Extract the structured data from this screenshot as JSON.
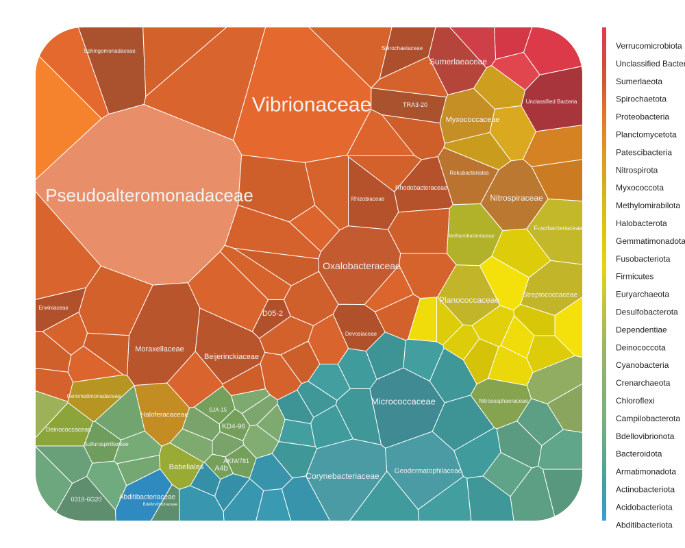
{
  "chart_data": {
    "type": "voronoi-treemap",
    "legend": {
      "placement": "right",
      "entries": [
        {
          "name": "Verrucomicrobiota",
          "color": "#e23b4a"
        },
        {
          "name": "Unclassified Bacteria",
          "color": "#d8424a"
        },
        {
          "name": "Sumerlaeota",
          "color": "#d04d3d"
        },
        {
          "name": "Spirochaetota",
          "color": "#cc5b35"
        },
        {
          "name": "Proteobacteria",
          "color": "#e0672e"
        },
        {
          "name": "Planctomycetota",
          "color": "#e3792a"
        },
        {
          "name": "Patescibacteria",
          "color": "#e18a26"
        },
        {
          "name": "Nitrospirota",
          "color": "#de9a22"
        },
        {
          "name": "Myxococcota",
          "color": "#d7a61f"
        },
        {
          "name": "Methylomirabilota",
          "color": "#d6b21d"
        },
        {
          "name": "Halobacterota",
          "color": "#d9bc17"
        },
        {
          "name": "Gemmatimonadota",
          "color": "#ddc411"
        },
        {
          "name": "Fusobacteriota",
          "color": "#e0cd0c"
        },
        {
          "name": "Firmicutes",
          "color": "#e6d40a"
        },
        {
          "name": "Euryarchaeota",
          "color": "#d5cf25"
        },
        {
          "name": "Desulfobacterota",
          "color": "#c4c63a"
        },
        {
          "name": "Dependentiae",
          "color": "#b3be4d"
        },
        {
          "name": "Deinococcota",
          "color": "#a2b85c"
        },
        {
          "name": "Cyanobacteria",
          "color": "#96b466"
        },
        {
          "name": "Crenarchaeota",
          "color": "#8cb26e"
        },
        {
          "name": "Chloroflexi",
          "color": "#84b174"
        },
        {
          "name": "Campilobacterota",
          "color": "#7cb27a"
        },
        {
          "name": "Bdellovibrionota",
          "color": "#72ae83"
        },
        {
          "name": "Bacteroidota",
          "color": "#62a98d"
        },
        {
          "name": "Armatimonadota",
          "color": "#52a596"
        },
        {
          "name": "Actinobacteriota",
          "color": "#43a1a2"
        },
        {
          "name": "Acidobacteriota",
          "color": "#3a9db5"
        },
        {
          "name": "Abditibacteriota",
          "color": "#37a0d6"
        }
      ]
    },
    "cells": [
      {
        "label": "Vibrionaceae",
        "phylum": "Proteobacteria",
        "color": "#e5682f",
        "font": 30
      },
      {
        "label": "Pseudoalteromonadaceae",
        "phylum": "Proteobacteria",
        "color": "#e88e68",
        "font": 26
      },
      {
        "label": "Oxalobacteraceae",
        "phylum": "Proteobacteria",
        "color": "#c35a30",
        "font": 14
      },
      {
        "label": "Moraxellaceae",
        "phylum": "Proteobacteria",
        "color": "#b9552d",
        "font": 11
      },
      {
        "label": "Beijerinckiaceae",
        "phylum": "Proteobacteria",
        "color": "#b9552d",
        "font": 11
      },
      {
        "label": "Rhodobacteraceae",
        "phylum": "Proteobacteria",
        "color": "#b5522c",
        "font": 9
      },
      {
        "label": "Rhizobiaceae",
        "phylum": "Proteobacteria",
        "color": "#b5522c",
        "font": 8
      },
      {
        "label": "Erwiniaceae",
        "phylum": "Proteobacteria",
        "color": "#b1512b",
        "font": 8
      },
      {
        "label": "D05-2",
        "phylum": "Proteobacteria",
        "color": "#b1512b",
        "font": 11
      },
      {
        "label": "Devosiaceae",
        "phylum": "Proteobacteria",
        "color": "#b1512b",
        "font": 8
      },
      {
        "label": "Sphingomonadaceae",
        "phylum": "Proteobacteria",
        "color": "#a9522d",
        "font": 8
      },
      {
        "label": "TRA3-20",
        "phylum": "Proteobacteria",
        "color": "#a9522d",
        "font": 9
      },
      {
        "label": "Spirochaetaceae",
        "phylum": "Spirochaetota",
        "color": "#ad4e2c",
        "font": 8
      },
      {
        "label": "Sumerlaeaceae",
        "phylum": "Sumerlaeota",
        "color": "#b5453b",
        "font": 12
      },
      {
        "label": "Unclassified Bacteria",
        "phylum": "Unclassified Bacteria",
        "color": "#a9353c",
        "font": 8
      },
      {
        "label": "Myxococcaceae",
        "phylum": "Myxococcota",
        "color": "#c58f25",
        "font": 11
      },
      {
        "label": "Nitrospiraceae",
        "phylum": "Nitrospirota",
        "color": "#bb7830",
        "font": 12
      },
      {
        "label": "Rokubacteriales",
        "phylum": "Methylomirabilota",
        "color": "#bb7430",
        "font": 8
      },
      {
        "label": "Haloferacaceae",
        "phylum": "Halobacterota",
        "color": "#c48d24",
        "font": 10
      },
      {
        "label": "Gemmatimonadaceae",
        "phylum": "Gemmatimonadota",
        "color": "#b79523",
        "font": 8
      },
      {
        "label": "Fusobacteriaceae",
        "phylum": "Fusobacteriota",
        "color": "#c3b72a",
        "font": 9
      },
      {
        "label": "Planococcaceae",
        "phylum": "Firmicutes",
        "color": "#c2b52a",
        "font": 12
      },
      {
        "label": "Streptococcaceae",
        "phylum": "Firmicutes",
        "color": "#c2b52a",
        "font": 10
      },
      {
        "label": "Methanobacteriaceae",
        "phylum": "Euryarchaeota",
        "color": "#b2b22a",
        "font": 7
      },
      {
        "label": "Babeliales",
        "phylum": "Dependentiae",
        "color": "#9aab35",
        "font": 11
      },
      {
        "label": "Deinococcaceae",
        "phylum": "Deinococcota",
        "color": "#8ca53a",
        "font": 9
      },
      {
        "label": "Nitrososphaeraceae",
        "phylum": "Crenarchaeota",
        "color": "#86a34f",
        "font": 8
      },
      {
        "label": "Sulfurospirillaceae",
        "phylum": "Campilobacterota",
        "color": "#6f9d5d",
        "font": 8
      },
      {
        "label": "KD4-96",
        "phylum": "Chloroflexi",
        "color": "#74a05b",
        "font": 10
      },
      {
        "label": "AKIW781",
        "phylum": "Chloroflexi",
        "color": "#74a05b",
        "font": 9
      },
      {
        "label": "A4b",
        "phylum": "Chloroflexi",
        "color": "#74a05b",
        "font": 11
      },
      {
        "label": "SJA-15",
        "phylum": "Chloroflexi",
        "color": "#74a05b",
        "font": 8
      },
      {
        "label": "0319-6G20",
        "phylum": "Bdellovibrionota",
        "color": "#5e8e6d",
        "font": 9
      },
      {
        "label": "Bdellovibrionaceae",
        "phylum": "Bdellovibrionota",
        "color": "#5e8e6d",
        "font": 6
      },
      {
        "label": "Micrococcaceae",
        "phylum": "Actinobacteriota",
        "color": "#3f8a93",
        "font": 13
      },
      {
        "label": "Corynebacteriaceae",
        "phylum": "Actinobacteriota",
        "color": "#4a9ba3",
        "font": 12
      },
      {
        "label": "Geodermatophilaceae",
        "phylum": "Actinobacteriota",
        "color": "#4a9ba3",
        "font": 10
      },
      {
        "label": "Abditibacteriaceae",
        "phylum": "Abditibacteriota",
        "color": "#2f8bbf",
        "font": 10
      }
    ]
  }
}
